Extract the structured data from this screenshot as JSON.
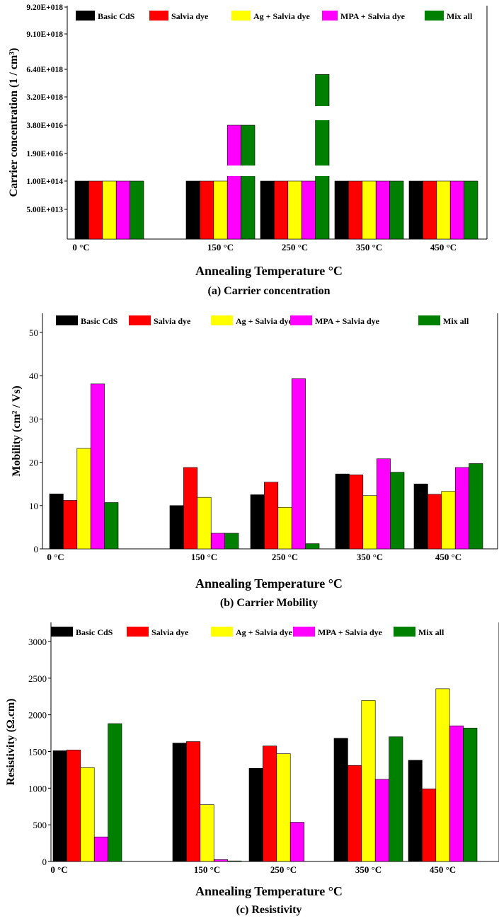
{
  "colors": {
    "Basic CdS": "#000000",
    "Salvia dye": "#ff0000",
    "Ag + Salvia dye": "#ffff00",
    "MPA + Salvia dye": "#ff00ff",
    "Mix all": "#008000"
  },
  "chart_data": [
    {
      "type": "bar",
      "title": "",
      "caption": "(a) Carrier concentration",
      "xlabel": "Annealing Temperature °C",
      "ylabel": "Carrier concentration (1 / cm³)",
      "axis_break": true,
      "categories": [
        "0 °C",
        "150 °C",
        "250 °C",
        "350 °C",
        "450 °C"
      ],
      "y_tick_labels": [
        "5.00E+013",
        "1.00E+014",
        "1.90E+016",
        "3.80E+016",
        "3.20E+018",
        "6.40E+018",
        "9.10E+018",
        "9.20E+018"
      ],
      "series": [
        {
          "name": "Basic CdS",
          "values": [
            100000000000000.0,
            100000000000000.0,
            100000000000000.0,
            100000000000000.0,
            100000000000000.0
          ]
        },
        {
          "name": "Salvia dye",
          "values": [
            100000000000000.0,
            100000000000000.0,
            100000000000000.0,
            100000000000000.0,
            100000000000000.0
          ]
        },
        {
          "name": "Ag + Salvia dye",
          "values": [
            100000000000000.0,
            100000000000000.0,
            100000000000000.0,
            100000000000000.0,
            100000000000000.0
          ]
        },
        {
          "name": "MPA + Salvia dye",
          "values": [
            100000000000000.0,
            3.8e+16,
            100000000000000.0,
            100000000000000.0,
            100000000000000.0
          ]
        },
        {
          "name": "Mix all",
          "values": [
            100000000000000.0,
            3.8e+16,
            5.8e+18,
            100000000000000.0,
            100000000000000.0
          ]
        }
      ],
      "legend": "top"
    },
    {
      "type": "bar",
      "title": "",
      "caption": "(b) Carrier Mobility",
      "xlabel": "Annealing Temperature °C",
      "ylabel": "Mobility (cm² / Vs)",
      "ylim": [
        0,
        50
      ],
      "yticks": [
        0,
        10,
        20,
        30,
        40,
        50
      ],
      "categories": [
        "0 °C",
        "150 °C",
        "250 °C",
        "350 °C",
        "450 °C"
      ],
      "series": [
        {
          "name": "Basic CdS",
          "values": [
            12.7,
            10.0,
            12.5,
            17.3,
            15.0
          ]
        },
        {
          "name": "Salvia dye",
          "values": [
            11.2,
            18.8,
            15.4,
            17.1,
            12.6
          ]
        },
        {
          "name": "Ag + Salvia dye",
          "values": [
            23.2,
            11.9,
            9.6,
            12.3,
            13.3
          ]
        },
        {
          "name": "MPA + Salvia dye",
          "values": [
            38.1,
            3.6,
            39.3,
            20.8,
            18.8
          ]
        },
        {
          "name": "Mix all",
          "values": [
            10.7,
            3.6,
            1.2,
            17.7,
            19.7
          ]
        }
      ],
      "legend": "top"
    },
    {
      "type": "bar",
      "title": "",
      "caption": "(c) Resistivity",
      "xlabel": "Annealing Temperature °C",
      "ylabel": "Resistivity (Ω.cm)",
      "ylim": [
        0,
        3000
      ],
      "yticks": [
        0,
        500,
        1000,
        1500,
        2000,
        2500,
        3000
      ],
      "categories": [
        "0 °C",
        "150 °C",
        "250 °C",
        "350 °C",
        "450 °C"
      ],
      "series": [
        {
          "name": "Basic CdS",
          "values": [
            1510,
            1615,
            1270,
            1680,
            1380
          ]
        },
        {
          "name": "Salvia dye",
          "values": [
            1520,
            1635,
            1575,
            1310,
            990
          ]
        },
        {
          "name": "Ag + Salvia dye",
          "values": [
            1280,
            775,
            1470,
            2195,
            2355
          ]
        },
        {
          "name": "MPA + Salvia dye",
          "values": [
            335,
            25,
            535,
            1120,
            1850
          ]
        },
        {
          "name": "Mix all",
          "values": [
            1880,
            8,
            0,
            1700,
            1820
          ]
        }
      ],
      "legend": "top"
    }
  ]
}
